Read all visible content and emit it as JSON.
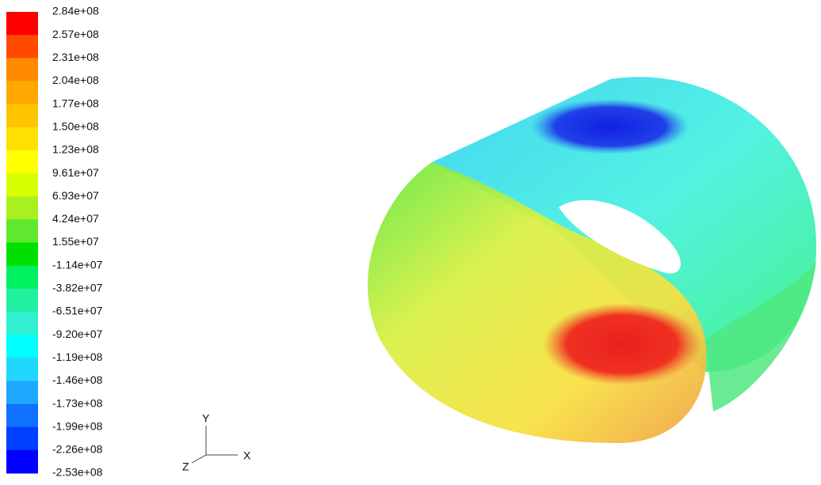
{
  "legend": {
    "labels": [
      "2.84e+08",
      "2.57e+08",
      "2.31e+08",
      "2.04e+08",
      "1.77e+08",
      "1.50e+08",
      "1.23e+08",
      "9.61e+07",
      "6.93e+07",
      "4.24e+07",
      "1.55e+07",
      "-1.14e+07",
      "-3.82e+07",
      "-6.51e+07",
      "-9.20e+07",
      "-1.19e+08",
      "-1.46e+08",
      "-1.73e+08",
      "-1.99e+08",
      "-2.26e+08",
      "-2.53e+08"
    ],
    "colors": [
      "#ff0000",
      "#ff4a00",
      "#ff8a00",
      "#ffa800",
      "#ffc400",
      "#ffe000",
      "#ffff00",
      "#d8ff00",
      "#a8f020",
      "#60e830",
      "#00e000",
      "#00f060",
      "#20f0a0",
      "#30f0d0",
      "#00ffff",
      "#20d8ff",
      "#20a8ff",
      "#1070ff",
      "#0040ff",
      "#0000ff"
    ]
  },
  "triad": {
    "y": "Y",
    "x": "X",
    "z": "Z"
  }
}
